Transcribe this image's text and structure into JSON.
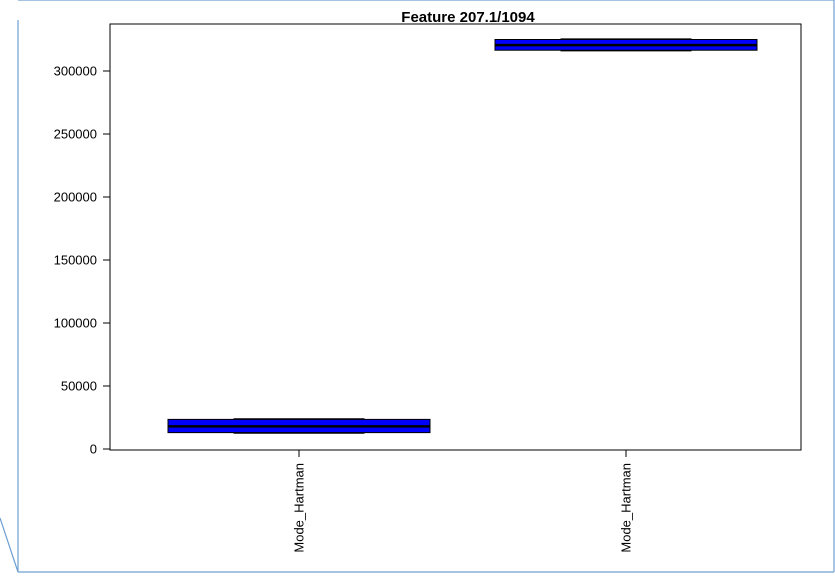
{
  "colors": {
    "frame": "#6f9fd0",
    "box_fill": "#0000ff",
    "box_stroke": "#000000",
    "axis": "#000000",
    "background": "#ffffff"
  },
  "chart_data": {
    "type": "boxplot",
    "title": "Feature  207.1/1094",
    "xlabel": "",
    "ylabel": "",
    "categories": [
      "Mode_Hartman",
      "Mode_Hartman"
    ],
    "boxes": [
      {
        "name": "Mode_Hartman",
        "min": 12500,
        "q1": 13000,
        "median": 18000,
        "q3": 23500,
        "max": 24000
      },
      {
        "name": "Mode_Hartman",
        "min": 316000,
        "q1": 316500,
        "median": 320500,
        "q3": 325000,
        "max": 325500
      }
    ],
    "ylim": [
      0,
      330000
    ],
    "yticks": [
      0,
      50000,
      100000,
      150000,
      200000,
      250000,
      300000
    ],
    "ytick_labels": [
      "0",
      "50000",
      "100000",
      "150000",
      "200000",
      "250000",
      "300000"
    ],
    "grid": false,
    "legend": "none"
  }
}
